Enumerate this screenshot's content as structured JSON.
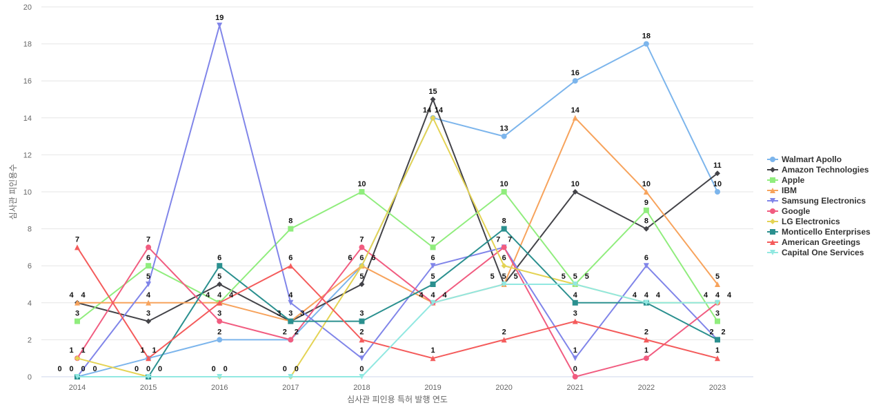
{
  "chart_data": {
    "type": "line",
    "title": "",
    "xlabel": "심사관 피인용 특허 발행 연도",
    "ylabel": "심사관 피인용수",
    "ylim": [
      0,
      20
    ],
    "yticks": [
      0,
      2,
      4,
      6,
      8,
      10,
      12,
      14,
      16,
      18,
      20
    ],
    "grid": true,
    "legend_position": "right",
    "categories": [
      "2014",
      "2015",
      "2016",
      "2017",
      "2018",
      "2019",
      "2020",
      "2021",
      "2022",
      "2023"
    ],
    "series": [
      {
        "name": "Walmart Apollo",
        "color": "#7cb5ec",
        "marker": "circle",
        "values": [
          0,
          1,
          2,
          2,
          6,
          14,
          13,
          16,
          18,
          10
        ]
      },
      {
        "name": "Amazon Technologies",
        "color": "#434348",
        "marker": "diamond",
        "values": [
          4,
          3,
          5,
          3,
          5,
          15,
          5,
          10,
          8,
          11
        ]
      },
      {
        "name": "Apple",
        "color": "#90ed7d",
        "marker": "square",
        "values": [
          3,
          6,
          4,
          8,
          10,
          7,
          10,
          5,
          9,
          3
        ]
      },
      {
        "name": "IBM",
        "color": "#f7a35c",
        "marker": "triangle",
        "values": [
          4,
          4,
          4,
          3,
          6,
          4,
          5,
          14,
          10,
          5
        ]
      },
      {
        "name": "Samsung Electronics",
        "color": "#8085e9",
        "marker": "triangle-down",
        "values": [
          0,
          5,
          19,
          4,
          1,
          6,
          7,
          1,
          6,
          2
        ]
      },
      {
        "name": "Google",
        "color": "#f15c80",
        "marker": "circle",
        "values": [
          1,
          7,
          3,
          2,
          7,
          4,
          7,
          0,
          1,
          4
        ]
      },
      {
        "name": "LG Electronics",
        "color": "#e4d354",
        "marker": "diamond",
        "values": [
          1,
          0,
          0,
          0,
          6,
          14,
          6,
          5,
          4,
          4
        ]
      },
      {
        "name": "Monticello Enterprises",
        "color": "#2b908f",
        "marker": "square",
        "values": [
          0,
          0,
          6,
          3,
          3,
          5,
          8,
          4,
          4,
          2
        ]
      },
      {
        "name": "American Greetings",
        "color": "#f45b5b",
        "marker": "triangle",
        "values": [
          7,
          1,
          4,
          6,
          2,
          1,
          2,
          3,
          2,
          1
        ]
      },
      {
        "name": "Capital One Services",
        "color": "#91e8e1",
        "marker": "triangle-down",
        "values": [
          0,
          0,
          0,
          0,
          0,
          4,
          5,
          5,
          4,
          4
        ]
      }
    ]
  }
}
